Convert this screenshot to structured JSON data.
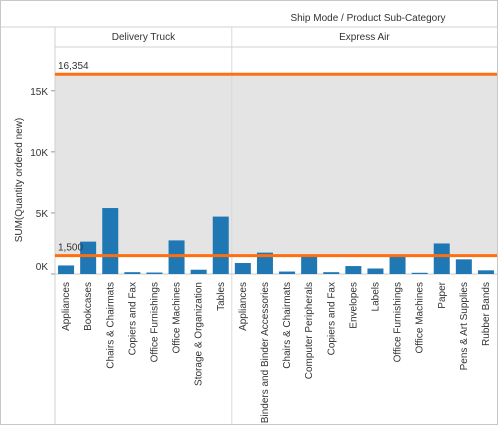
{
  "chart_data": {
    "type": "bar",
    "title": "Ship Mode / Product Sub-Category",
    "ylabel": "SUM(Quantity ordered new)",
    "ylim": [
      0,
      18500
    ],
    "yticks": [
      0,
      5000,
      10000,
      15000
    ],
    "ytick_labels": [
      "0K",
      "5K",
      "10K",
      "15K"
    ],
    "grid": false,
    "colors": {
      "bar": "#1f77b4",
      "reference_line": "#ff6f0f",
      "band": "#e4e4e4",
      "panel_divider": "#d8d8d8"
    },
    "reference_lines": [
      {
        "value": 16354,
        "label": "16,354"
      },
      {
        "value": 1500,
        "label": "1,500"
      }
    ],
    "reference_band": [
      1500,
      16354
    ],
    "panes": [
      {
        "name": "Delivery Truck",
        "categories": [
          "Appliances",
          "Bookcases",
          "Chairs & Chairmats",
          "Copiers and Fax",
          "Office Furnishings",
          "Office Machines",
          "Storage & Organization",
          "Tables"
        ],
        "values": [
          700,
          2650,
          5400,
          150,
          120,
          2750,
          350,
          4700
        ]
      },
      {
        "name": "Express Air",
        "categories": [
          "Appliances",
          "Binders and Binder Accessories",
          "Chairs & Chairmats",
          "Computer Peripherals",
          "Copiers and Fax",
          "Envelopes",
          "Labels",
          "Office Furnishings",
          "Office Machines",
          "Paper",
          "Pens & Art Supplies",
          "Rubber Bands"
        ],
        "values": [
          900,
          1750,
          200,
          1550,
          150,
          650,
          450,
          1500,
          100,
          2500,
          1200,
          300
        ]
      }
    ]
  }
}
